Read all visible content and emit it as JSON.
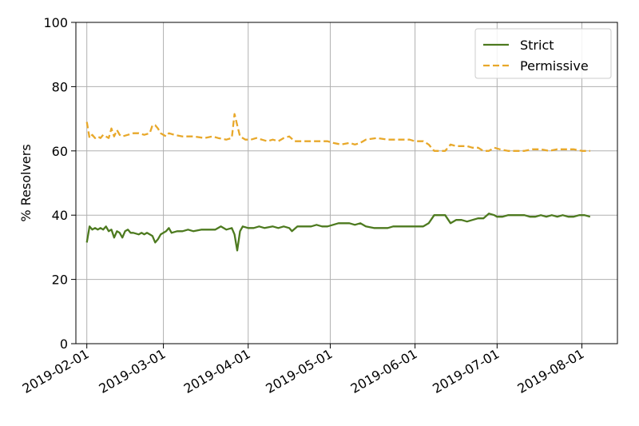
{
  "chart_data": {
    "type": "line",
    "title": "",
    "xlabel": "",
    "ylabel": "% Resolvers",
    "ylim": [
      0,
      100
    ],
    "xlim": [
      "2019-01-28",
      "2019-08-14"
    ],
    "grid": true,
    "legend_position": "top-right",
    "x_tick_labels": [
      "2019-02-01",
      "2019-03-01",
      "2019-04-01",
      "2019-05-01",
      "2019-06-01",
      "2019-07-01",
      "2019-08-01"
    ],
    "y_tick_labels": [
      "0",
      "20",
      "40",
      "60",
      "80",
      "100"
    ],
    "series": [
      {
        "name": "Strict",
        "color": "#4d7a1f",
        "dash": "solid",
        "points": [
          [
            "2019-02-01",
            31.5
          ],
          [
            "2019-02-02",
            36.5
          ],
          [
            "2019-02-03",
            35.5
          ],
          [
            "2019-02-04",
            36.0
          ],
          [
            "2019-02-05",
            35.5
          ],
          [
            "2019-02-06",
            36.0
          ],
          [
            "2019-02-07",
            35.5
          ],
          [
            "2019-02-08",
            36.5
          ],
          [
            "2019-02-09",
            35.0
          ],
          [
            "2019-02-10",
            35.5
          ],
          [
            "2019-02-11",
            33.0
          ],
          [
            "2019-02-12",
            35.0
          ],
          [
            "2019-02-13",
            34.5
          ],
          [
            "2019-02-14",
            33.0
          ],
          [
            "2019-02-15",
            35.0
          ],
          [
            "2019-02-16",
            35.5
          ],
          [
            "2019-02-17",
            34.5
          ],
          [
            "2019-02-18",
            34.5
          ],
          [
            "2019-02-20",
            34.0
          ],
          [
            "2019-02-21",
            34.5
          ],
          [
            "2019-02-22",
            34.0
          ],
          [
            "2019-02-23",
            34.5
          ],
          [
            "2019-02-24",
            34.0
          ],
          [
            "2019-02-25",
            33.5
          ],
          [
            "2019-02-26",
            31.5
          ],
          [
            "2019-02-27",
            32.5
          ],
          [
            "2019-02-28",
            34.0
          ],
          [
            "2019-03-02",
            35.0
          ],
          [
            "2019-03-03",
            36.0
          ],
          [
            "2019-03-04",
            34.5
          ],
          [
            "2019-03-06",
            35.0
          ],
          [
            "2019-03-08",
            35.0
          ],
          [
            "2019-03-10",
            35.5
          ],
          [
            "2019-03-12",
            35.0
          ],
          [
            "2019-03-15",
            35.5
          ],
          [
            "2019-03-18",
            35.5
          ],
          [
            "2019-03-20",
            35.5
          ],
          [
            "2019-03-22",
            36.5
          ],
          [
            "2019-03-24",
            35.5
          ],
          [
            "2019-03-26",
            36.0
          ],
          [
            "2019-03-27",
            34.0
          ],
          [
            "2019-03-28",
            29.0
          ],
          [
            "2019-03-29",
            35.0
          ],
          [
            "2019-03-30",
            36.5
          ],
          [
            "2019-04-01",
            36.0
          ],
          [
            "2019-04-03",
            36.0
          ],
          [
            "2019-04-05",
            36.5
          ],
          [
            "2019-04-07",
            36.0
          ],
          [
            "2019-04-10",
            36.5
          ],
          [
            "2019-04-12",
            36.0
          ],
          [
            "2019-04-14",
            36.5
          ],
          [
            "2019-04-16",
            36.0
          ],
          [
            "2019-04-17",
            35.0
          ],
          [
            "2019-04-19",
            36.5
          ],
          [
            "2019-04-22",
            36.5
          ],
          [
            "2019-04-24",
            36.5
          ],
          [
            "2019-04-26",
            37.0
          ],
          [
            "2019-04-28",
            36.5
          ],
          [
            "2019-04-30",
            36.5
          ],
          [
            "2019-05-02",
            37.0
          ],
          [
            "2019-05-04",
            37.5
          ],
          [
            "2019-05-06",
            37.5
          ],
          [
            "2019-05-08",
            37.5
          ],
          [
            "2019-05-10",
            37.0
          ],
          [
            "2019-05-12",
            37.5
          ],
          [
            "2019-05-14",
            36.5
          ],
          [
            "2019-05-17",
            36.0
          ],
          [
            "2019-05-20",
            36.0
          ],
          [
            "2019-05-22",
            36.0
          ],
          [
            "2019-05-24",
            36.5
          ],
          [
            "2019-05-28",
            36.5
          ],
          [
            "2019-06-01",
            36.5
          ],
          [
            "2019-06-04",
            36.5
          ],
          [
            "2019-06-06",
            37.5
          ],
          [
            "2019-06-08",
            40.0
          ],
          [
            "2019-06-10",
            40.0
          ],
          [
            "2019-06-12",
            40.0
          ],
          [
            "2019-06-14",
            37.5
          ],
          [
            "2019-06-16",
            38.5
          ],
          [
            "2019-06-18",
            38.5
          ],
          [
            "2019-06-20",
            38.0
          ],
          [
            "2019-06-22",
            38.5
          ],
          [
            "2019-06-24",
            39.0
          ],
          [
            "2019-06-26",
            39.0
          ],
          [
            "2019-06-28",
            40.5
          ],
          [
            "2019-06-30",
            40.0
          ],
          [
            "2019-07-01",
            39.5
          ],
          [
            "2019-07-03",
            39.5
          ],
          [
            "2019-07-05",
            40.0
          ],
          [
            "2019-07-07",
            40.0
          ],
          [
            "2019-07-09",
            40.0
          ],
          [
            "2019-07-11",
            40.0
          ],
          [
            "2019-07-13",
            39.5
          ],
          [
            "2019-07-15",
            39.5
          ],
          [
            "2019-07-17",
            40.0
          ],
          [
            "2019-07-19",
            39.5
          ],
          [
            "2019-07-21",
            40.0
          ],
          [
            "2019-07-23",
            39.5
          ],
          [
            "2019-07-25",
            40.0
          ],
          [
            "2019-07-27",
            39.5
          ],
          [
            "2019-07-29",
            39.5
          ],
          [
            "2019-07-31",
            40.0
          ],
          [
            "2019-08-02",
            40.0
          ],
          [
            "2019-08-04",
            39.5
          ]
        ]
      },
      {
        "name": "Permissive",
        "color": "#e8a82a",
        "dash": "dashed",
        "points": [
          [
            "2019-02-01",
            69.0
          ],
          [
            "2019-02-02",
            64.0
          ],
          [
            "2019-02-03",
            65.0
          ],
          [
            "2019-02-04",
            64.0
          ],
          [
            "2019-02-05",
            64.5
          ],
          [
            "2019-02-06",
            64.0
          ],
          [
            "2019-02-07",
            65.0
          ],
          [
            "2019-02-08",
            64.5
          ],
          [
            "2019-02-09",
            64.0
          ],
          [
            "2019-02-10",
            67.0
          ],
          [
            "2019-02-11",
            64.5
          ],
          [
            "2019-02-12",
            66.5
          ],
          [
            "2019-02-13",
            65.0
          ],
          [
            "2019-02-14",
            64.5
          ],
          [
            "2019-02-16",
            65.0
          ],
          [
            "2019-02-18",
            65.5
          ],
          [
            "2019-02-20",
            65.5
          ],
          [
            "2019-02-22",
            65.0
          ],
          [
            "2019-02-24",
            65.5
          ],
          [
            "2019-02-25",
            68.0
          ],
          [
            "2019-02-26",
            68.0
          ],
          [
            "2019-02-27",
            67.0
          ],
          [
            "2019-02-28",
            65.5
          ],
          [
            "2019-03-01",
            65.0
          ],
          [
            "2019-03-02",
            64.5
          ],
          [
            "2019-03-03",
            65.5
          ],
          [
            "2019-03-05",
            65.0
          ],
          [
            "2019-03-08",
            64.5
          ],
          [
            "2019-03-12",
            64.5
          ],
          [
            "2019-03-16",
            64.0
          ],
          [
            "2019-03-19",
            64.5
          ],
          [
            "2019-03-21",
            64.0
          ],
          [
            "2019-03-24",
            63.5
          ],
          [
            "2019-03-26",
            64.0
          ],
          [
            "2019-03-27",
            71.5
          ],
          [
            "2019-03-28",
            68.0
          ],
          [
            "2019-03-29",
            64.5
          ],
          [
            "2019-03-31",
            63.5
          ],
          [
            "2019-04-02",
            63.5
          ],
          [
            "2019-04-04",
            64.0
          ],
          [
            "2019-04-06",
            63.5
          ],
          [
            "2019-04-08",
            63.0
          ],
          [
            "2019-04-10",
            63.5
          ],
          [
            "2019-04-12",
            63.0
          ],
          [
            "2019-04-14",
            64.0
          ],
          [
            "2019-04-16",
            64.5
          ],
          [
            "2019-04-18",
            63.0
          ],
          [
            "2019-04-21",
            63.0
          ],
          [
            "2019-04-24",
            63.0
          ],
          [
            "2019-04-27",
            63.0
          ],
          [
            "2019-04-30",
            63.0
          ],
          [
            "2019-05-02",
            62.5
          ],
          [
            "2019-05-05",
            62.0
          ],
          [
            "2019-05-08",
            62.5
          ],
          [
            "2019-05-10",
            62.0
          ],
          [
            "2019-05-12",
            62.5
          ],
          [
            "2019-05-14",
            63.5
          ],
          [
            "2019-05-18",
            64.0
          ],
          [
            "2019-05-22",
            63.5
          ],
          [
            "2019-05-26",
            63.5
          ],
          [
            "2019-05-30",
            63.5
          ],
          [
            "2019-06-01",
            63.0
          ],
          [
            "2019-06-04",
            63.0
          ],
          [
            "2019-06-06",
            62.0
          ],
          [
            "2019-06-08",
            60.0
          ],
          [
            "2019-06-10",
            60.0
          ],
          [
            "2019-06-12",
            60.0
          ],
          [
            "2019-06-14",
            62.0
          ],
          [
            "2019-06-16",
            61.5
          ],
          [
            "2019-06-18",
            61.5
          ],
          [
            "2019-06-20",
            61.5
          ],
          [
            "2019-06-22",
            61.0
          ],
          [
            "2019-06-24",
            61.0
          ],
          [
            "2019-06-26",
            60.0
          ],
          [
            "2019-06-28",
            60.0
          ],
          [
            "2019-06-30",
            61.0
          ],
          [
            "2019-07-02",
            60.5
          ],
          [
            "2019-07-05",
            60.0
          ],
          [
            "2019-07-08",
            60.0
          ],
          [
            "2019-07-11",
            60.0
          ],
          [
            "2019-07-14",
            60.5
          ],
          [
            "2019-07-17",
            60.5
          ],
          [
            "2019-07-20",
            60.0
          ],
          [
            "2019-07-23",
            60.5
          ],
          [
            "2019-07-26",
            60.5
          ],
          [
            "2019-07-29",
            60.5
          ],
          [
            "2019-08-01",
            60.0
          ],
          [
            "2019-08-04",
            60.0
          ]
        ]
      }
    ]
  }
}
